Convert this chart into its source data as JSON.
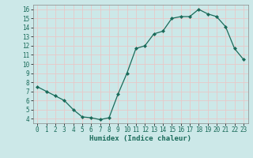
{
  "x": [
    0,
    1,
    2,
    3,
    4,
    5,
    6,
    7,
    8,
    9,
    10,
    11,
    12,
    13,
    14,
    15,
    16,
    17,
    18,
    19,
    20,
    21,
    22,
    23
  ],
  "y": [
    7.5,
    7.0,
    6.5,
    6.0,
    5.0,
    4.2,
    4.1,
    3.9,
    4.1,
    6.7,
    9.0,
    11.7,
    12.0,
    13.3,
    13.6,
    15.0,
    15.2,
    15.2,
    16.0,
    15.5,
    15.2,
    14.1,
    11.7,
    10.5
  ],
  "line_color": "#1a6b5a",
  "marker": "D",
  "marker_size": 2.0,
  "bg_color": "#cce8e8",
  "grid_color": "#e8c8c8",
  "xlabel": "Humidex (Indice chaleur)",
  "ylim": [
    3.5,
    16.5
  ],
  "xlim": [
    -0.5,
    23.5
  ],
  "yticks": [
    4,
    5,
    6,
    7,
    8,
    9,
    10,
    11,
    12,
    13,
    14,
    15,
    16
  ],
  "xticks": [
    0,
    1,
    2,
    3,
    4,
    5,
    6,
    7,
    8,
    9,
    10,
    11,
    12,
    13,
    14,
    15,
    16,
    17,
    18,
    19,
    20,
    21,
    22,
    23
  ],
  "tick_fontsize": 5.5,
  "xlabel_fontsize": 6.5,
  "line_width": 0.9,
  "spine_color": "#888888"
}
